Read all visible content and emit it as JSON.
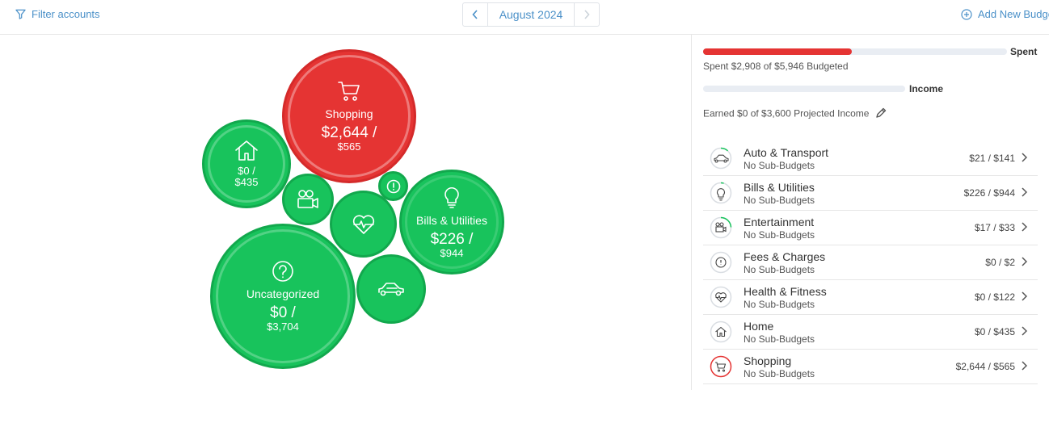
{
  "header": {
    "filter_label": "Filter accounts",
    "month_label": "August 2024",
    "add_budget_label": "Add New Budget"
  },
  "bubbles": {
    "shopping": {
      "name": "Shopping",
      "spent": "$2,644 /",
      "budget": "$565",
      "icon": "shopping-cart-icon",
      "status": "over"
    },
    "home": {
      "spent": "$0 /",
      "budget": "$435",
      "icon": "house-icon"
    },
    "entertainment": {
      "icon": "movie-camera-icon"
    },
    "fees": {
      "icon": "exclamation-icon"
    },
    "health": {
      "icon": "heart-pulse-icon"
    },
    "bills": {
      "name": "Bills & Utilities",
      "spent": "$226 /",
      "budget": "$944",
      "icon": "lightbulb-icon"
    },
    "uncategorized": {
      "name": "Uncategorized",
      "spent": "$0 /",
      "budget": "$3,704",
      "icon": "question-icon"
    },
    "auto": {
      "icon": "car-icon"
    }
  },
  "summary": {
    "spent_label": "Spent",
    "spent_text": "Spent $2,908 of $5,946 Budgeted",
    "spent_fraction": 0.489,
    "income_label": "Income",
    "income_text": "Earned $0 of $3,600 Projected Income",
    "income_fraction": 0
  },
  "categories": [
    {
      "name": "Auto & Transport",
      "sub": "No Sub-Budgets",
      "amount": "$21 / $141",
      "icon": "car-icon"
    },
    {
      "name": "Bills & Utilities",
      "sub": "No Sub-Budgets",
      "amount": "$226 / $944",
      "icon": "lightbulb-icon"
    },
    {
      "name": "Entertainment",
      "sub": "No Sub-Budgets",
      "amount": "$17 / $33",
      "icon": "movie-camera-icon"
    },
    {
      "name": "Fees & Charges",
      "sub": "No Sub-Budgets",
      "amount": "$0 / $2",
      "icon": "exclamation-icon"
    },
    {
      "name": "Health & Fitness",
      "sub": "No Sub-Budgets",
      "amount": "$0 / $122",
      "icon": "heart-pulse-icon"
    },
    {
      "name": "Home",
      "sub": "No Sub-Budgets",
      "amount": "$0 / $435",
      "icon": "house-icon"
    },
    {
      "name": "Shopping",
      "sub": "No Sub-Budgets",
      "amount": "$2,644 / $565",
      "icon": "shopping-cart-icon"
    }
  ],
  "colors": {
    "over_budget": "#e53433",
    "under_budget": "#18c35c",
    "accent": "#4a90c8"
  }
}
